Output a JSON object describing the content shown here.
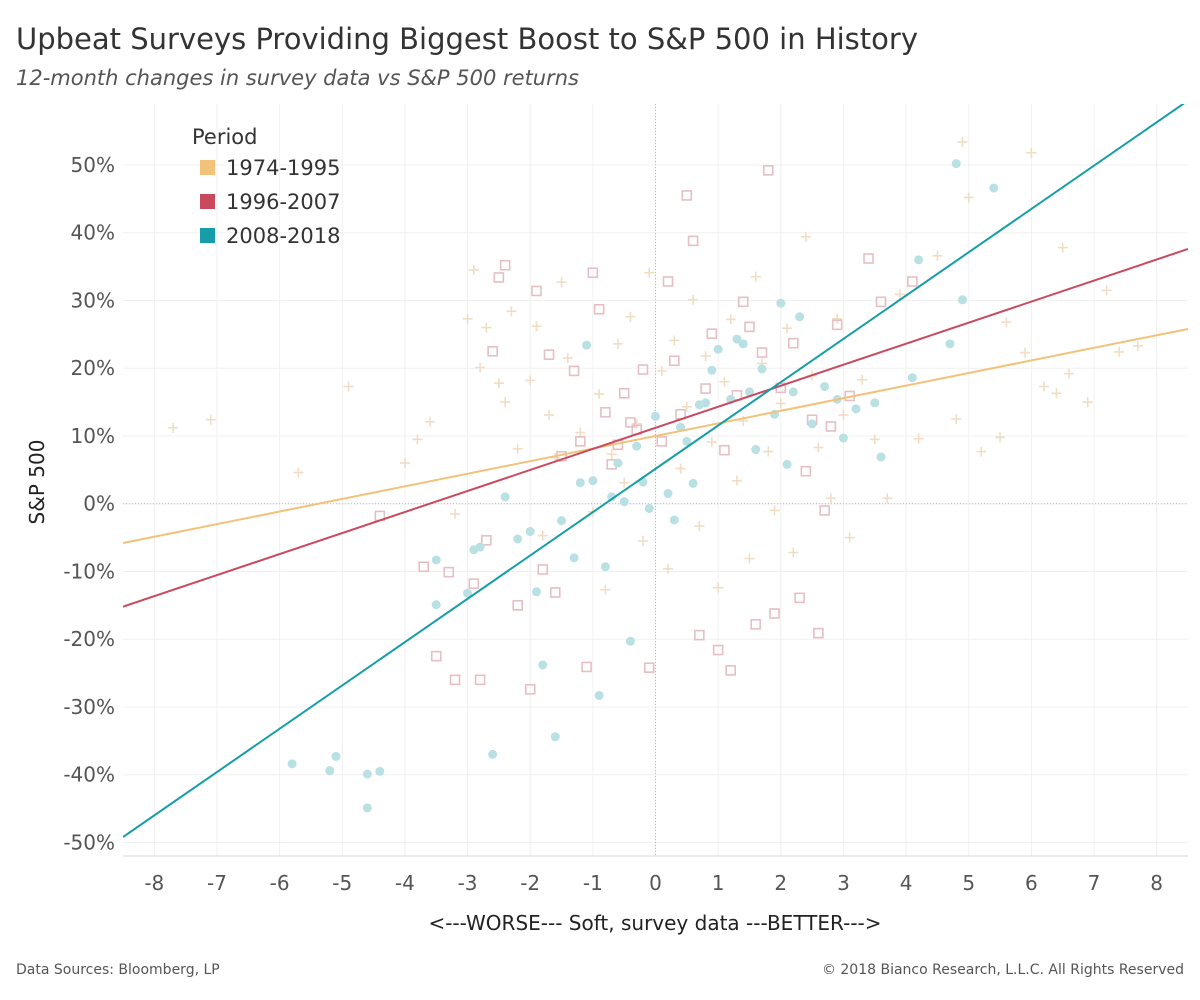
{
  "title": "Upbeat Surveys Providing Biggest Boost to S&P 500 in History",
  "subtitle": "12-month changes in survey data vs S&P 500 returns",
  "footer": {
    "left": "Data Sources: Bloomberg, LP",
    "right": "© 2018 Bianco Research, L.L.C. All Rights Reserved"
  },
  "chart_data": {
    "type": "scatter",
    "xlabel": "<---WORSE--- Soft, survey data ---BETTER--->",
    "ylabel": "S&P 500",
    "xlim": [
      -8.5,
      8.5
    ],
    "ylim": [
      -52,
      59
    ],
    "x_ticks": [
      "-8",
      "-7",
      "-6",
      "-5",
      "-4",
      "-3",
      "-2",
      "-1",
      "0",
      "1",
      "2",
      "3",
      "4",
      "5",
      "6",
      "7",
      "8"
    ],
    "x_tick_values": [
      -8,
      -7,
      -6,
      -5,
      -4,
      -3,
      -2,
      -1,
      0,
      1,
      2,
      3,
      4,
      5,
      6,
      7,
      8
    ],
    "y_ticks": [
      "50%",
      "40%",
      "30%",
      "20%",
      "10%",
      "0%",
      "-10%",
      "-20%",
      "-30%",
      "-40%",
      "-50%"
    ],
    "y_tick_values": [
      50,
      40,
      30,
      20,
      10,
      0,
      -10,
      -20,
      -30,
      -40,
      -50
    ],
    "grid": true,
    "zero_lines": true,
    "legend": {
      "title": "Period",
      "position": "top-left",
      "entries": [
        "1974-1995",
        "1996-2007",
        "2008-2018"
      ]
    },
    "series": [
      {
        "name": "1974-1995",
        "color": "#f2c27b",
        "point_color": "#f1ddc4",
        "marker": "plus",
        "trendline": [
          [
            -8.5,
            -5.8
          ],
          [
            8.5,
            25.8
          ]
        ],
        "points": [
          [
            -7.7,
            11.2
          ],
          [
            -7.1,
            12.4
          ],
          [
            -5.7,
            4.6
          ],
          [
            -4.9,
            17.3
          ],
          [
            -4.0,
            6.0
          ],
          [
            -3.8,
            9.5
          ],
          [
            -3.6,
            12.1
          ],
          [
            -3.2,
            -1.5
          ],
          [
            -3.0,
            27.3
          ],
          [
            -2.9,
            34.5
          ],
          [
            -2.8,
            20.1
          ],
          [
            -2.7,
            26.0
          ],
          [
            -2.5,
            17.8
          ],
          [
            -2.4,
            15.0
          ],
          [
            -2.3,
            28.4
          ],
          [
            -2.2,
            8.1
          ],
          [
            -2.0,
            18.2
          ],
          [
            -1.9,
            26.2
          ],
          [
            -1.8,
            -4.7
          ],
          [
            -1.7,
            13.1
          ],
          [
            -1.6,
            6.8
          ],
          [
            -1.5,
            32.7
          ],
          [
            -1.4,
            21.5
          ],
          [
            -1.2,
            10.5
          ],
          [
            -1.0,
            -1.2
          ],
          [
            -0.9,
            16.2
          ],
          [
            -0.8,
            -12.7
          ],
          [
            -0.7,
            7.3
          ],
          [
            -0.6,
            23.6
          ],
          [
            -0.5,
            3.1
          ],
          [
            -0.4,
            27.6
          ],
          [
            -0.3,
            11.8
          ],
          [
            -0.2,
            -5.5
          ],
          [
            -0.1,
            34.1
          ],
          [
            0.1,
            19.6
          ],
          [
            0.2,
            -9.6
          ],
          [
            0.3,
            24.1
          ],
          [
            0.4,
            5.2
          ],
          [
            0.5,
            14.3
          ],
          [
            0.6,
            30.1
          ],
          [
            0.7,
            -3.3
          ],
          [
            0.8,
            21.8
          ],
          [
            0.9,
            9.1
          ],
          [
            1.0,
            -12.4
          ],
          [
            1.1,
            18.0
          ],
          [
            1.2,
            27.2
          ],
          [
            1.3,
            3.4
          ],
          [
            1.4,
            12.2
          ],
          [
            1.5,
            -8.1
          ],
          [
            1.6,
            33.5
          ],
          [
            1.7,
            20.7
          ],
          [
            1.8,
            7.7
          ],
          [
            1.9,
            -1.0
          ],
          [
            2.0,
            14.8
          ],
          [
            2.1,
            25.9
          ],
          [
            2.2,
            -7.2
          ],
          [
            2.4,
            39.4
          ],
          [
            2.5,
            18.9
          ],
          [
            2.6,
            8.3
          ],
          [
            2.8,
            0.8
          ],
          [
            2.9,
            27.3
          ],
          [
            3.0,
            13.1
          ],
          [
            3.1,
            -5.0
          ],
          [
            3.3,
            18.3
          ],
          [
            3.5,
            9.5
          ],
          [
            3.7,
            0.8
          ],
          [
            3.9,
            30.9
          ],
          [
            4.2,
            9.6
          ],
          [
            4.5,
            36.6
          ],
          [
            4.8,
            12.5
          ],
          [
            4.9,
            53.4
          ],
          [
            5.0,
            45.2
          ],
          [
            5.2,
            7.7
          ],
          [
            5.5,
            9.8
          ],
          [
            5.6,
            26.8
          ],
          [
            5.9,
            22.3
          ],
          [
            6.0,
            51.8
          ],
          [
            6.2,
            17.3
          ],
          [
            6.4,
            16.3
          ],
          [
            6.5,
            37.8
          ],
          [
            6.6,
            19.2
          ],
          [
            6.9,
            15.0
          ],
          [
            7.2,
            31.5
          ],
          [
            7.4,
            22.4
          ],
          [
            7.7,
            23.3
          ]
        ]
      },
      {
        "name": "1996-2007",
        "color": "#c94a5e",
        "point_color": "#e6bfc4",
        "marker": "square",
        "trendline": [
          [
            -8.5,
            -15.2
          ],
          [
            8.5,
            37.6
          ]
        ],
        "points": [
          [
            -4.4,
            -1.8
          ],
          [
            -3.7,
            -9.3
          ],
          [
            -3.5,
            -22.5
          ],
          [
            -3.3,
            -10.1
          ],
          [
            -3.2,
            -26.0
          ],
          [
            -2.9,
            -11.8
          ],
          [
            -2.8,
            -26.0
          ],
          [
            -2.7,
            -5.4
          ],
          [
            -2.6,
            22.5
          ],
          [
            -2.5,
            33.4
          ],
          [
            -2.4,
            35.2
          ],
          [
            -2.2,
            -15.0
          ],
          [
            -2.0,
            -27.4
          ],
          [
            -1.9,
            31.4
          ],
          [
            -1.8,
            -9.7
          ],
          [
            -1.7,
            22.0
          ],
          [
            -1.6,
            -13.1
          ],
          [
            -1.5,
            7.0
          ],
          [
            -1.3,
            19.6
          ],
          [
            -1.2,
            9.2
          ],
          [
            -1.1,
            -24.1
          ],
          [
            -1.0,
            34.1
          ],
          [
            -0.9,
            28.7
          ],
          [
            -0.8,
            13.5
          ],
          [
            -0.7,
            5.8
          ],
          [
            -0.6,
            8.7
          ],
          [
            -0.5,
            16.3
          ],
          [
            -0.4,
            12.0
          ],
          [
            -0.3,
            10.9
          ],
          [
            -0.2,
            19.8
          ],
          [
            -0.1,
            -24.2
          ],
          [
            0.1,
            9.2
          ],
          [
            0.2,
            32.8
          ],
          [
            0.3,
            21.1
          ],
          [
            0.4,
            13.2
          ],
          [
            0.5,
            45.5
          ],
          [
            0.6,
            38.8
          ],
          [
            0.7,
            -19.4
          ],
          [
            0.8,
            17.0
          ],
          [
            0.9,
            25.1
          ],
          [
            1.0,
            -21.6
          ],
          [
            1.1,
            7.9
          ],
          [
            1.2,
            -24.6
          ],
          [
            1.3,
            16.0
          ],
          [
            1.4,
            29.8
          ],
          [
            1.5,
            26.1
          ],
          [
            1.6,
            -17.8
          ],
          [
            1.7,
            22.3
          ],
          [
            1.8,
            49.2
          ],
          [
            1.9,
            -16.2
          ],
          [
            2.0,
            17.1
          ],
          [
            2.2,
            23.7
          ],
          [
            2.3,
            -13.9
          ],
          [
            2.4,
            4.8
          ],
          [
            2.5,
            12.4
          ],
          [
            2.6,
            -19.1
          ],
          [
            2.7,
            -1.0
          ],
          [
            2.8,
            11.4
          ],
          [
            2.9,
            26.4
          ],
          [
            3.1,
            15.9
          ],
          [
            3.4,
            36.2
          ],
          [
            3.6,
            29.8
          ],
          [
            4.1,
            32.8
          ]
        ]
      },
      {
        "name": "2008-2018",
        "color": "#169ea8",
        "point_color": "#b9e0e2",
        "marker": "circle",
        "trendline": [
          [
            -8.5,
            -49.2
          ],
          [
            8.5,
            59.5
          ]
        ],
        "points": [
          [
            -5.8,
            -38.4
          ],
          [
            -5.2,
            -39.4
          ],
          [
            -5.1,
            -37.3
          ],
          [
            -4.6,
            -39.9
          ],
          [
            -4.6,
            -44.9
          ],
          [
            -4.4,
            -39.5
          ],
          [
            -3.5,
            -8.3
          ],
          [
            -3.5,
            -14.9
          ],
          [
            -3.0,
            -13.2
          ],
          [
            -2.9,
            -6.8
          ],
          [
            -2.8,
            -6.4
          ],
          [
            -2.6,
            -37.0
          ],
          [
            -2.4,
            1.0
          ],
          [
            -2.2,
            -5.2
          ],
          [
            -2.0,
            -4.1
          ],
          [
            -1.9,
            -13.0
          ],
          [
            -1.8,
            -23.8
          ],
          [
            -1.6,
            -34.4
          ],
          [
            -1.5,
            -2.5
          ],
          [
            -1.3,
            -8.0
          ],
          [
            -1.2,
            3.1
          ],
          [
            -1.1,
            23.4
          ],
          [
            -1.0,
            3.4
          ],
          [
            -0.9,
            -28.3
          ],
          [
            -0.8,
            -9.3
          ],
          [
            -0.7,
            1.0
          ],
          [
            -0.6,
            6.0
          ],
          [
            -0.5,
            0.3
          ],
          [
            -0.4,
            -20.3
          ],
          [
            -0.3,
            8.5
          ],
          [
            -0.2,
            3.2
          ],
          [
            -0.1,
            -0.7
          ],
          [
            0.0,
            12.9
          ],
          [
            0.2,
            1.5
          ],
          [
            0.3,
            -2.4
          ],
          [
            0.4,
            11.3
          ],
          [
            0.5,
            9.2
          ],
          [
            0.6,
            3.0
          ],
          [
            0.7,
            14.6
          ],
          [
            0.8,
            14.9
          ],
          [
            0.9,
            19.7
          ],
          [
            1.0,
            22.8
          ],
          [
            1.2,
            15.4
          ],
          [
            1.3,
            24.3
          ],
          [
            1.4,
            23.6
          ],
          [
            1.5,
            16.5
          ],
          [
            1.6,
            8.0
          ],
          [
            1.7,
            19.9
          ],
          [
            1.9,
            13.2
          ],
          [
            2.0,
            29.6
          ],
          [
            2.1,
            5.8
          ],
          [
            2.2,
            16.5
          ],
          [
            2.3,
            27.6
          ],
          [
            2.5,
            11.8
          ],
          [
            2.7,
            17.3
          ],
          [
            2.9,
            15.4
          ],
          [
            3.0,
            9.7
          ],
          [
            3.2,
            14.0
          ],
          [
            3.5,
            14.9
          ],
          [
            3.6,
            6.9
          ],
          [
            4.1,
            18.6
          ],
          [
            4.2,
            36.0
          ],
          [
            4.7,
            23.6
          ],
          [
            4.8,
            50.2
          ],
          [
            4.9,
            30.1
          ],
          [
            5.4,
            46.6
          ]
        ]
      }
    ]
  }
}
